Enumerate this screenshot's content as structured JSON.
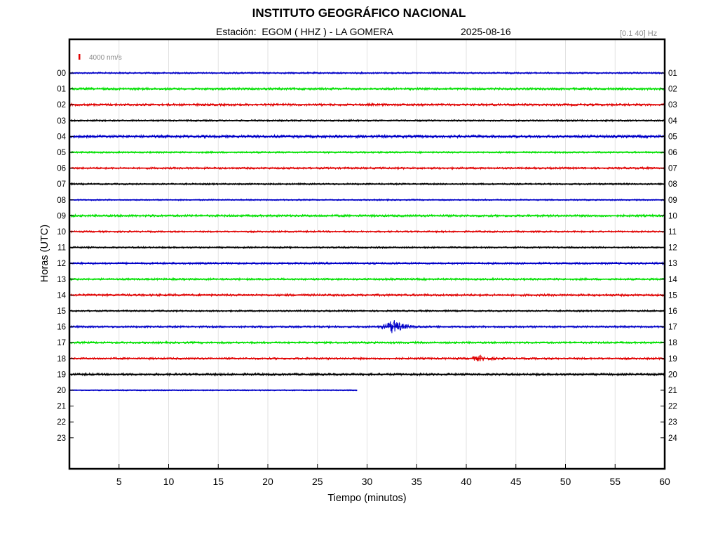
{
  "header": {
    "title": "INSTITUTO GEOGRÁFICO NACIONAL",
    "station_line": "Estación:  EGOM ( HHZ ) - LA GOMERA",
    "date": "2025-08-16",
    "band": "[0.1 40] Hz"
  },
  "chart_data": {
    "type": "line",
    "title": "INSTITUTO GEOGRÁFICO NACIONAL",
    "xlabel": "Tiempo (minutos)",
    "ylabel": "Horas (UTC)",
    "xlim": [
      0,
      60
    ],
    "x_ticks": [
      5,
      10,
      15,
      20,
      25,
      30,
      35,
      40,
      45,
      50,
      55,
      60
    ],
    "left_tick_labels": [
      "00",
      "01",
      "02",
      "03",
      "04",
      "05",
      "06",
      "07",
      "08",
      "09",
      "10",
      "11",
      "12",
      "13",
      "14",
      "15",
      "16",
      "17",
      "18",
      "19",
      "20",
      "21",
      "22",
      "23"
    ],
    "right_tick_labels": [
      "01",
      "02",
      "03",
      "04",
      "05",
      "06",
      "07",
      "08",
      "09",
      "10",
      "11",
      "12",
      "13",
      "14",
      "15",
      "16",
      "17",
      "18",
      "19",
      "20",
      "21",
      "22",
      "23",
      "24"
    ],
    "grid": "vertical",
    "scale_label": "4000 nm/s",
    "scale_color": "#e00000",
    "colors": [
      "#0000c8",
      "#00e000",
      "#e00000",
      "#000000"
    ],
    "traces": [
      {
        "hour": 0,
        "end": 60,
        "noise": 1.2
      },
      {
        "hour": 1,
        "end": 60,
        "noise": 1.6
      },
      {
        "hour": 2,
        "end": 60,
        "noise": 1.6
      },
      {
        "hour": 3,
        "end": 60,
        "noise": 1.2
      },
      {
        "hour": 4,
        "end": 60,
        "noise": 2.0
      },
      {
        "hour": 5,
        "end": 60,
        "noise": 1.2
      },
      {
        "hour": 6,
        "end": 60,
        "noise": 1.4
      },
      {
        "hour": 7,
        "end": 60,
        "noise": 1.2
      },
      {
        "hour": 8,
        "end": 60,
        "noise": 1.0
      },
      {
        "hour": 9,
        "end": 60,
        "noise": 1.6
      },
      {
        "hour": 10,
        "end": 60,
        "noise": 1.2
      },
      {
        "hour": 11,
        "end": 60,
        "noise": 1.2
      },
      {
        "hour": 12,
        "end": 60,
        "noise": 1.4
      },
      {
        "hour": 13,
        "end": 60,
        "noise": 1.4
      },
      {
        "hour": 14,
        "end": 60,
        "noise": 1.6
      },
      {
        "hour": 15,
        "end": 60,
        "noise": 1.2
      },
      {
        "hour": 16,
        "end": 60,
        "noise": 1.4
      },
      {
        "hour": 17,
        "end": 60,
        "noise": 1.4
      },
      {
        "hour": 18,
        "end": 60,
        "noise": 1.4
      },
      {
        "hour": 19,
        "end": 60,
        "noise": 1.6
      },
      {
        "hour": 20,
        "end": 29,
        "noise": 0.8
      }
    ],
    "events": [
      {
        "hour": 16,
        "minute": 32.7,
        "amplitude": 9
      },
      {
        "hour": 18,
        "minute": 41.4,
        "amplitude": 3
      }
    ]
  }
}
